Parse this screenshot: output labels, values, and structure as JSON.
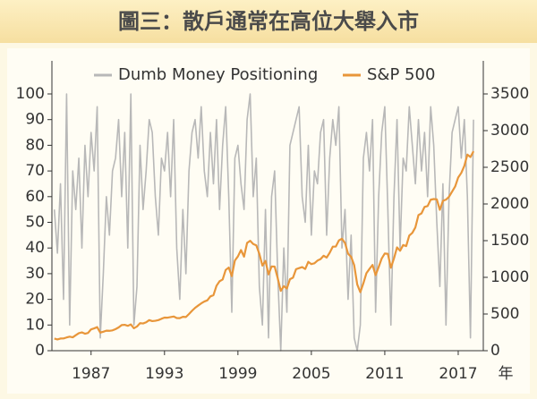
{
  "chart_data": {
    "type": "line",
    "title": "圖三：散戶通常在高位大舉入市",
    "xlabel": "年",
    "x": [
      1984,
      1984.25,
      1984.5,
      1984.75,
      1985,
      1985.25,
      1985.5,
      1985.75,
      1986,
      1986.25,
      1986.5,
      1986.75,
      1987,
      1987.25,
      1987.5,
      1987.75,
      1988,
      1988.25,
      1988.5,
      1988.75,
      1989,
      1989.25,
      1989.5,
      1989.75,
      1990,
      1990.25,
      1990.5,
      1990.75,
      1991,
      1991.25,
      1991.5,
      1991.75,
      1992,
      1992.25,
      1992.5,
      1992.75,
      1993,
      1993.25,
      1993.5,
      1993.75,
      1994,
      1994.25,
      1994.5,
      1994.75,
      1995,
      1995.25,
      1995.5,
      1995.75,
      1996,
      1996.25,
      1996.5,
      1996.75,
      1997,
      1997.25,
      1997.5,
      1997.75,
      1998,
      1998.25,
      1998.5,
      1998.75,
      1999,
      1999.25,
      1999.5,
      1999.75,
      2000,
      2000.25,
      2000.5,
      2000.75,
      2001,
      2001.25,
      2001.5,
      2001.75,
      2002,
      2002.25,
      2002.5,
      2002.75,
      2003,
      2003.25,
      2003.5,
      2003.75,
      2004,
      2004.25,
      2004.5,
      2004.75,
      2005,
      2005.25,
      2005.5,
      2005.75,
      2006,
      2006.25,
      2006.5,
      2006.75,
      2007,
      2007.25,
      2007.5,
      2007.75,
      2008,
      2008.25,
      2008.5,
      2008.75,
      2009,
      2009.25,
      2009.5,
      2009.75,
      2010,
      2010.25,
      2010.5,
      2010.75,
      2011,
      2011.25,
      2011.5,
      2011.75,
      2012,
      2012.25,
      2012.5,
      2012.75,
      2013,
      2013.25,
      2013.5,
      2013.75,
      2014,
      2014.25,
      2014.5,
      2014.75,
      2015,
      2015.25,
      2015.5,
      2015.75,
      2016,
      2016.25,
      2016.5,
      2016.75,
      2017,
      2017.25,
      2017.5,
      2017.75,
      2018,
      2018.25
    ],
    "series": [
      {
        "name": "Dumb Money Positioning",
        "color": "#b8b8b8",
        "axis": "y",
        "values": [
          55,
          38,
          65,
          20,
          100,
          10,
          70,
          55,
          75,
          40,
          80,
          60,
          85,
          70,
          95,
          5,
          30,
          60,
          45,
          70,
          75,
          90,
          60,
          85,
          40,
          100,
          10,
          25,
          80,
          55,
          70,
          90,
          85,
          60,
          45,
          75,
          70,
          85,
          60,
          90,
          40,
          20,
          55,
          30,
          70,
          85,
          90,
          75,
          95,
          70,
          60,
          85,
          65,
          90,
          55,
          80,
          95,
          60,
          15,
          75,
          80,
          65,
          55,
          90,
          100,
          60,
          75,
          25,
          10,
          55,
          5,
          60,
          70,
          30,
          0,
          40,
          15,
          80,
          85,
          90,
          95,
          60,
          50,
          80,
          45,
          70,
          65,
          85,
          90,
          45,
          75,
          90,
          80,
          95,
          40,
          55,
          20,
          45,
          5,
          0,
          10,
          75,
          85,
          70,
          90,
          15,
          60,
          85,
          95,
          55,
          10,
          60,
          90,
          40,
          75,
          70,
          95,
          80,
          65,
          90,
          70,
          85,
          60,
          95,
          80,
          50,
          25,
          65,
          10,
          60,
          85,
          90,
          95,
          75,
          90,
          60,
          5,
          90
        ]
      },
      {
        "name": "S&P 500",
        "color": "#e8963a",
        "axis": "y2",
        "values": [
          165,
          153,
          166,
          167,
          180,
          191,
          182,
          211,
          238,
          250,
          231,
          242,
          291,
          304,
          321,
          247,
          258,
          273,
          271,
          277,
          294,
          317,
          349,
          353,
          339,
          358,
          306,
          330,
          375,
          371,
          387,
          417,
          403,
          408,
          417,
          435,
          451,
          450,
          458,
          466,
          445,
          444,
          462,
          459,
          500,
          544,
          584,
          615,
          645,
          670,
          687,
          740,
          757,
          885,
          947,
          970,
          1101,
          1133,
          1017,
          1229,
          1286,
          1372,
          1282,
          1469,
          1498,
          1454,
          1436,
          1320,
          1160,
          1224,
          1040,
          1148,
          1147,
          989,
          815,
          879,
          848,
          974,
          995,
          1111,
          1126,
          1140,
          1114,
          1211,
          1180,
          1191,
          1228,
          1248,
          1294,
          1270,
          1335,
          1418,
          1420,
          1503,
          1526,
          1468,
          1322,
          1280,
          1166,
          903,
          797,
          919,
          1057,
          1115,
          1169,
          1030,
          1141,
          1257,
          1325,
          1320,
          1131,
          1257,
          1408,
          1362,
          1440,
          1426,
          1569,
          1606,
          1681,
          1848,
          1872,
          1960,
          1972,
          2058,
          2067,
          2063,
          1920,
          2043,
          2059,
          2098,
          2168,
          2238,
          2362,
          2423,
          2519,
          2673,
          2640,
          2718
        ]
      }
    ],
    "xlim": [
      1983.8,
      2019.05
    ],
    "xticks": [
      1987,
      1993,
      1999,
      2005,
      2011,
      2017
    ],
    "ylim": [
      0,
      100
    ],
    "yticks": [
      0,
      10,
      20,
      30,
      40,
      50,
      60,
      70,
      80,
      90,
      100
    ],
    "y2lim": [
      0,
      3500
    ],
    "y2ticks": [
      0,
      500,
      1000,
      1500,
      2000,
      2500,
      3000,
      3500
    ],
    "legend": "top"
  }
}
